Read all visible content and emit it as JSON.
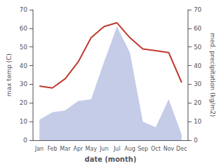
{
  "chart_data": {
    "type": "line",
    "xlabel": "date (month)",
    "ylabel": "max temp (C)",
    "y2label": "med. precipitation (kg/m2)",
    "categories": [
      "Jan",
      "Feb",
      "Mar",
      "Apr",
      "May",
      "Jun",
      "Jul",
      "Aug",
      "Sep",
      "Oct",
      "Nov",
      "Dec"
    ],
    "series": [
      {
        "type": "area",
        "axis": "y2",
        "color": "#c5cce8",
        "values": [
          11,
          15,
          16,
          21,
          22,
          42,
          61,
          47,
          10,
          7,
          22,
          3
        ]
      },
      {
        "type": "line",
        "color": "#c0392b",
        "values": [
          29,
          28,
          33,
          42,
          55,
          61,
          63,
          55,
          49,
          48,
          47,
          31
        ]
      }
    ],
    "ylim": [
      0,
      70
    ],
    "yticks": [
      0,
      10,
      20,
      30,
      40,
      50,
      60,
      70
    ],
    "y2lim": [
      0,
      70
    ],
    "y2ticks": [
      0,
      10,
      20,
      30,
      40,
      50,
      60,
      70
    ],
    "grid": false
  }
}
